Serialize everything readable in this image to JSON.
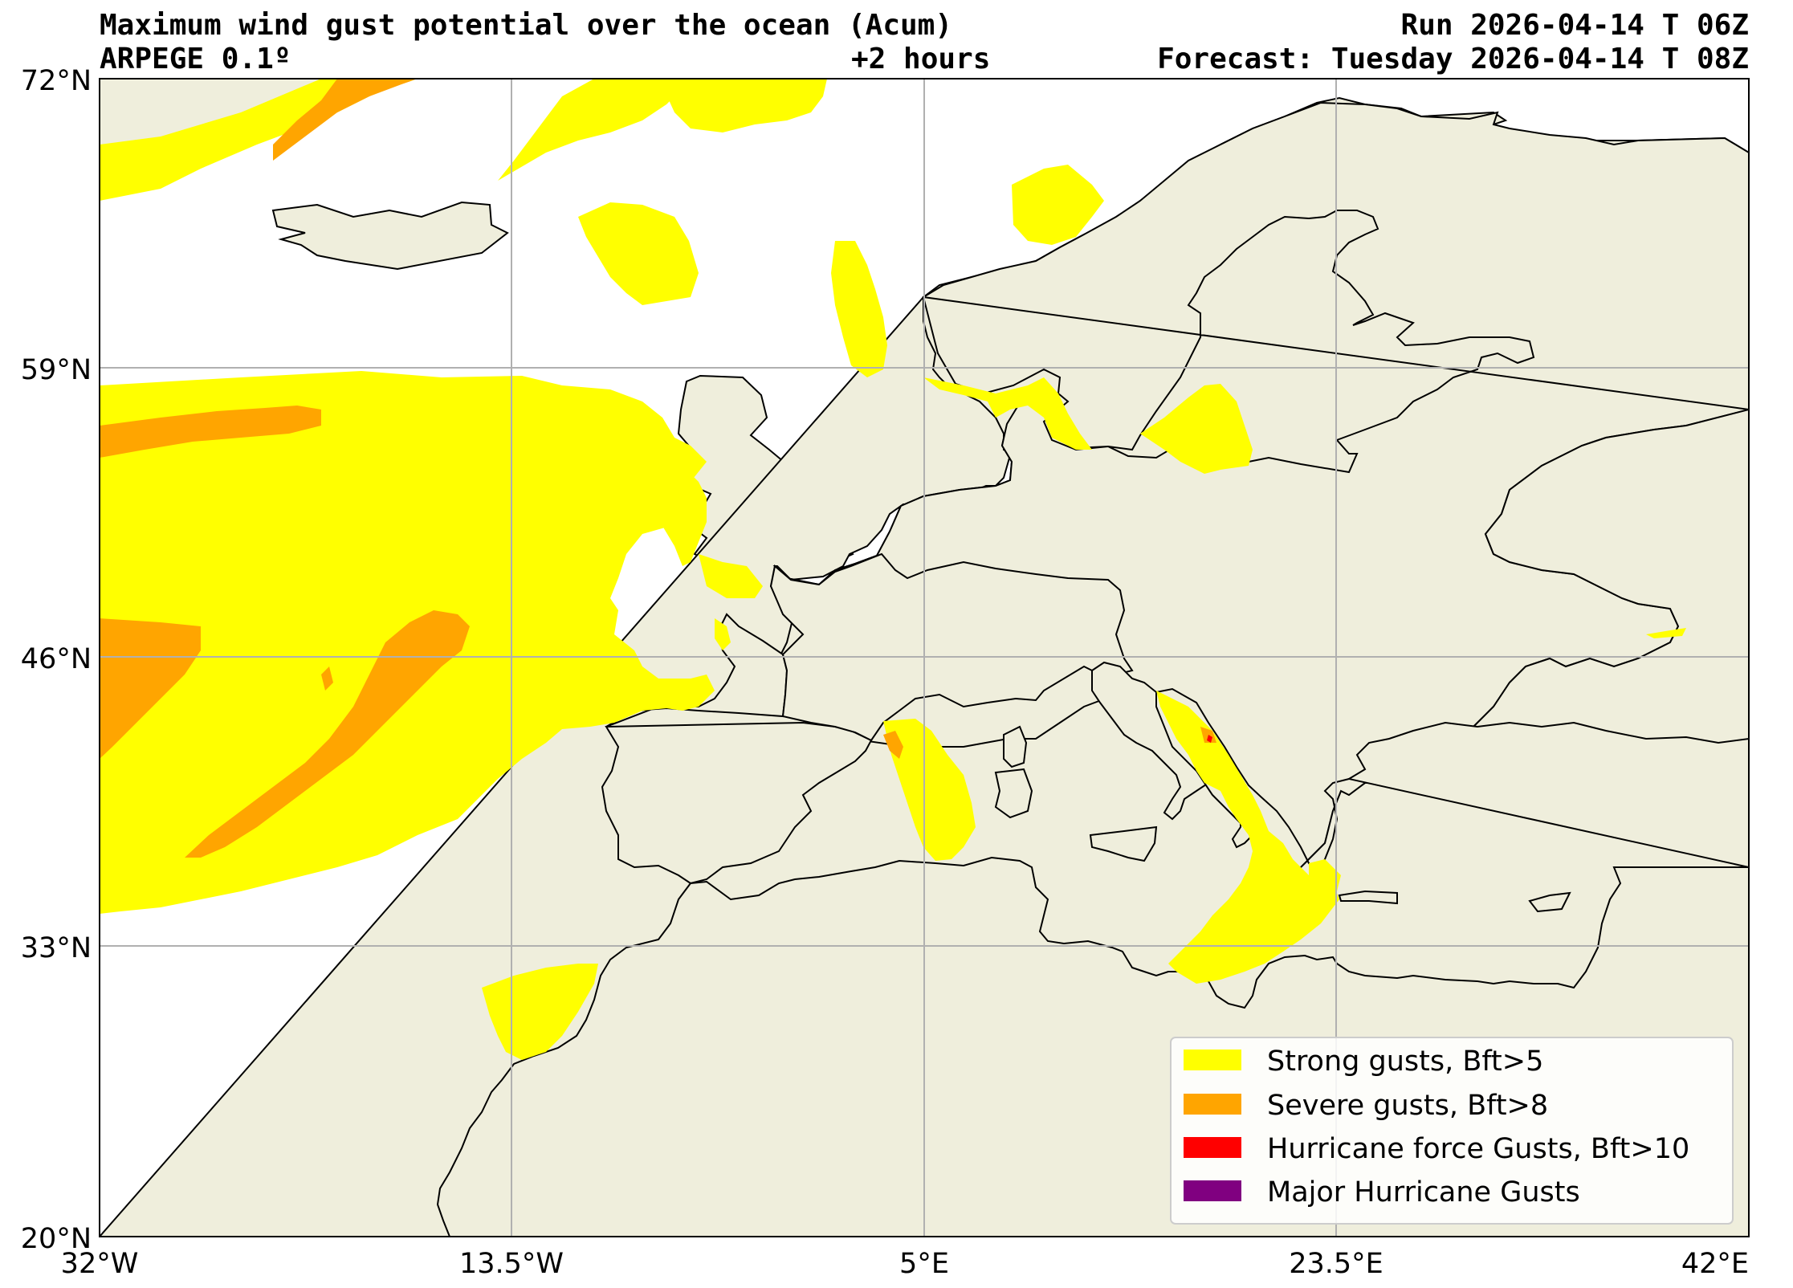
{
  "header": {
    "title": "Maximum wind gust potential over the ocean (Acum)",
    "model": "ARPEGE 0.1º",
    "lead": "+2 hours",
    "run": "Run 2026-04-14 T 06Z",
    "forecast": "Forecast: Tuesday 2026-04-14 T 08Z"
  },
  "axes": {
    "lat_ticks": [
      "72°N",
      "59°N",
      "46°N",
      "33°N",
      "20°N"
    ],
    "lon_ticks": [
      "32°W",
      "13.5°W",
      "5°E",
      "23.5°E",
      "42°E"
    ],
    "lat_range": [
      20,
      72
    ],
    "lon_range": [
      -32,
      42
    ],
    "grid": true
  },
  "legend": {
    "placement": "bottom-right",
    "items": [
      {
        "label": "Strong gusts, Bft>5",
        "color": "#ffff00"
      },
      {
        "label": "Severe gusts, Bft>8",
        "color": "#ffa500"
      },
      {
        "label": "Hurricane force Gusts, Bft>10",
        "color": "#ff0000"
      },
      {
        "label": "Major Hurricane Gusts",
        "color": "#800080"
      }
    ]
  },
  "colors": {
    "land": "#efeedc",
    "ocean": "#ffffff",
    "grid": "#b0b0b0"
  }
}
